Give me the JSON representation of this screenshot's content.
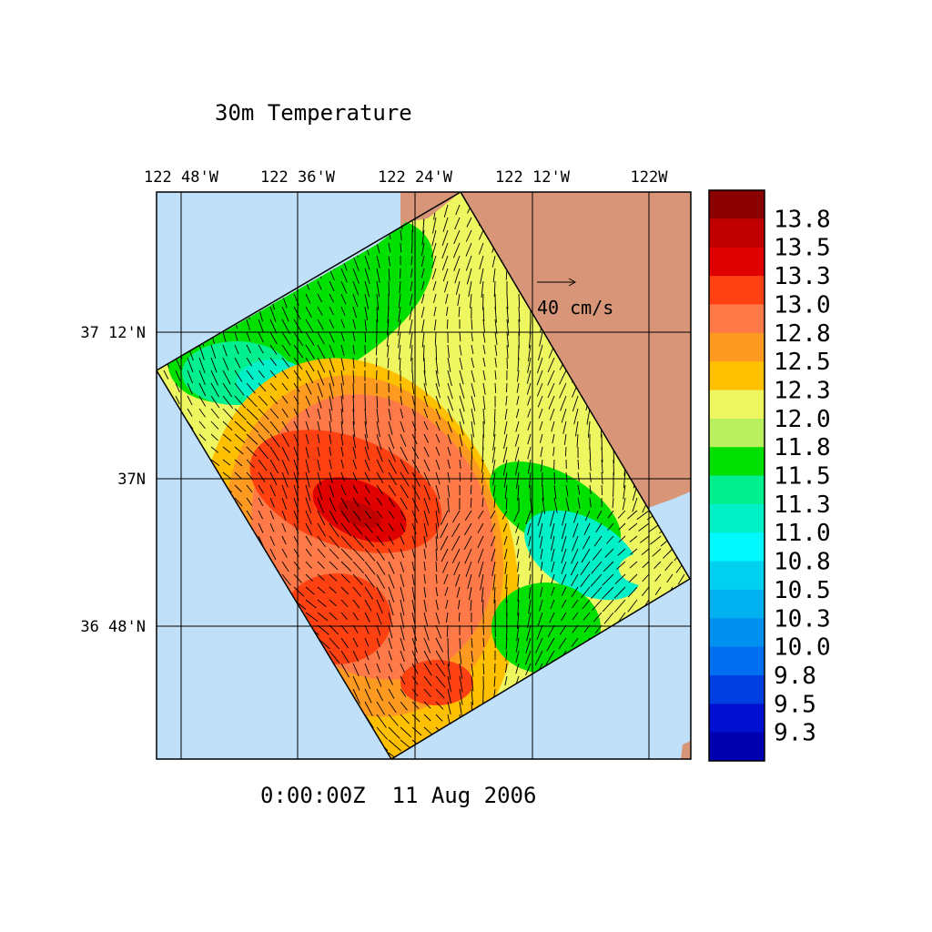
{
  "title": "30m Temperature",
  "timestamp": "0:00:00Z  11 Aug 2006",
  "lon_ticks": [
    "122 48'W",
    "122 36'W",
    "122 24'W",
    "122 12'W",
    "122W"
  ],
  "lat_ticks": [
    "37 12'N",
    "37N",
    "36 48'N"
  ],
  "vector_scale": "40 cm/s",
  "colorbar": {
    "labels": [
      "13.8",
      "13.5",
      "13.3",
      "13.0",
      "12.8",
      "12.5",
      "12.3",
      "12.0",
      "11.8",
      "11.5",
      "11.3",
      "11.0",
      "10.8",
      "10.5",
      "10.3",
      "10.0",
      "9.8",
      "9.5",
      "9.3"
    ],
    "colors": [
      "#8b0000",
      "#c00000",
      "#e00000",
      "#ff4010",
      "#ff7a48",
      "#ff9a20",
      "#ffc000",
      "#eef760",
      "#b8f060",
      "#00e000",
      "#00f090",
      "#00f0c8",
      "#00f8ff",
      "#00d0f0",
      "#00b0f0",
      "#0090f0",
      "#0070f0",
      "#0040e0",
      "#0010d0",
      "#0000b0"
    ]
  },
  "colors": {
    "ocean": "#c0e0fa",
    "land": "#d89577"
  }
}
